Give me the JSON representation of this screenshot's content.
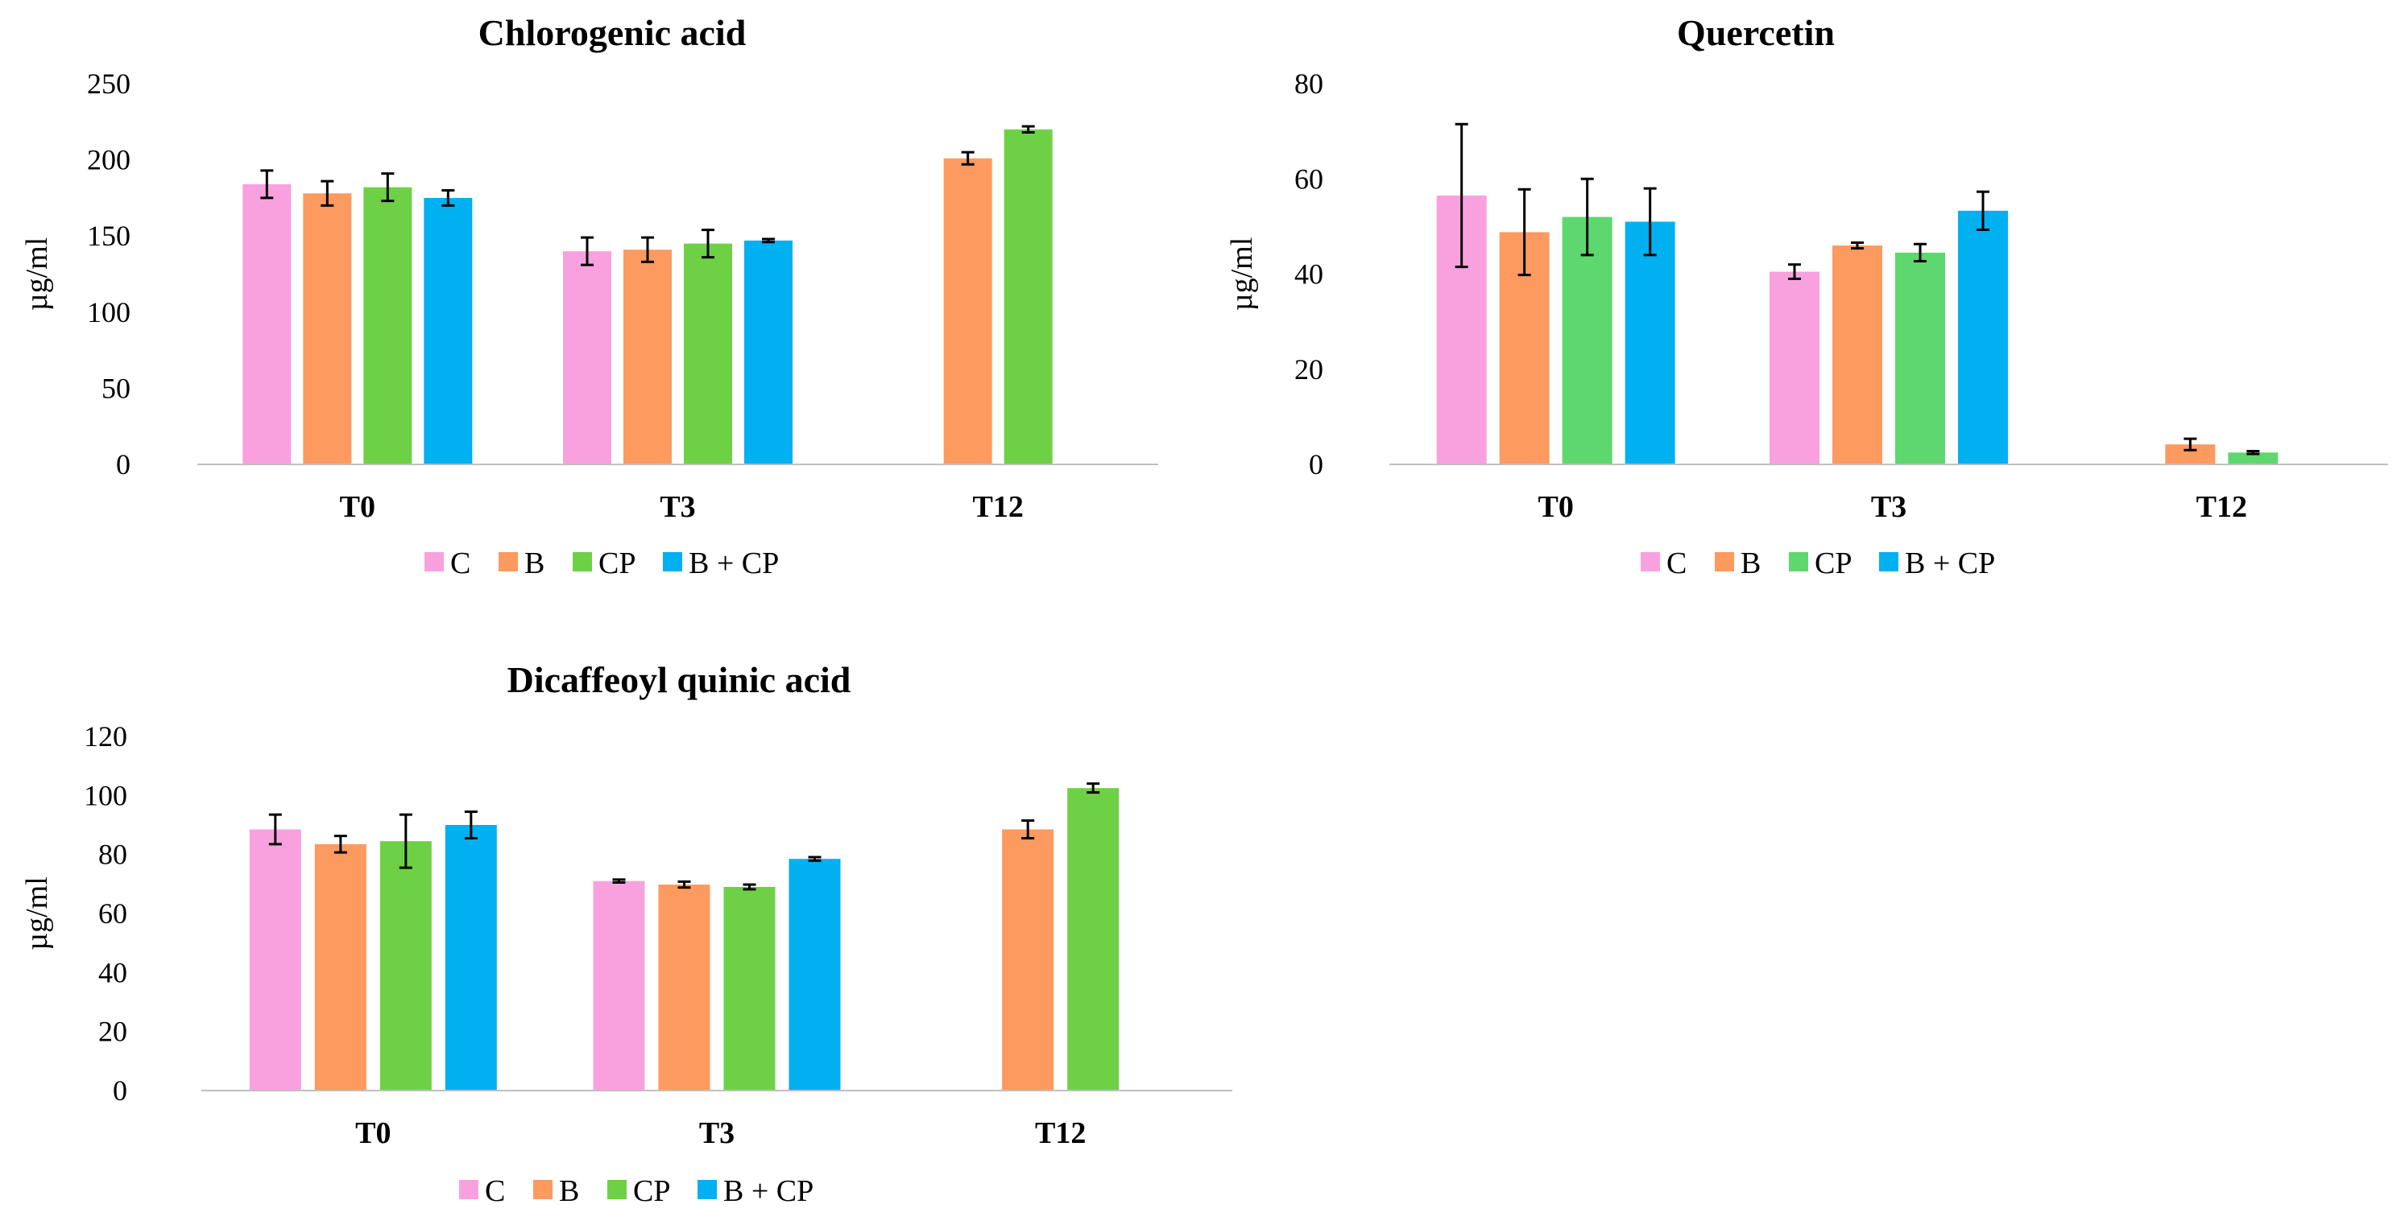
{
  "colors": {
    "C": "#f9a1df",
    "B": "#fd9a5f",
    "CP_first": "#6ed145",
    "CP_second": "#5ed86e",
    "B + CP": "#00b0f0",
    "axis": "#bfbfbf",
    "error": "#000000"
  },
  "chart_data": [
    {
      "type": "bar",
      "title": "Chlorogenic acid",
      "ylabel": "µg/ml",
      "xlabel": "",
      "ylim": [
        0,
        250
      ],
      "yticks": [
        0,
        50,
        100,
        150,
        200,
        250
      ],
      "categories": [
        "T0",
        "T3",
        "T12"
      ],
      "legend_position": "bottom",
      "series": [
        {
          "name": "C",
          "values": [
            184,
            140,
            null
          ],
          "errors": [
            9,
            9,
            null
          ]
        },
        {
          "name": "B",
          "values": [
            178,
            141,
            201
          ],
          "errors": [
            8,
            8,
            4
          ]
        },
        {
          "name": "CP",
          "values": [
            182,
            145,
            220
          ],
          "errors": [
            9,
            9,
            2
          ]
        },
        {
          "name": "B + CP",
          "values": [
            175,
            147,
            null
          ],
          "errors": [
            5,
            1,
            null
          ]
        }
      ]
    },
    {
      "type": "bar",
      "title": "Quercetin",
      "ylabel": "µg/ml",
      "xlabel": "",
      "ylim": [
        0,
        80
      ],
      "yticks": [
        0,
        20,
        40,
        60,
        80
      ],
      "categories": [
        "T0",
        "T3",
        "T12"
      ],
      "legend_position": "bottom",
      "series": [
        {
          "name": "C",
          "values": [
            56.5,
            40.5,
            null
          ],
          "errors": [
            15,
            1.5,
            null
          ]
        },
        {
          "name": "B",
          "values": [
            48.8,
            46,
            4.2
          ],
          "errors": [
            9,
            0.6,
            1.2
          ]
        },
        {
          "name": "CP",
          "values": [
            52,
            44.5,
            2.5
          ],
          "errors": [
            8,
            1.8,
            0.3
          ]
        },
        {
          "name": "B + CP",
          "values": [
            51,
            53.3,
            null
          ],
          "errors": [
            7,
            4,
            null
          ]
        }
      ]
    },
    {
      "type": "bar",
      "title": "Dicaffeoyl quinic acid",
      "ylabel": "µg/ml",
      "xlabel": "",
      "ylim": [
        0,
        120
      ],
      "yticks": [
        0,
        20,
        40,
        60,
        80,
        100,
        120
      ],
      "categories": [
        "T0",
        "T3",
        "T12"
      ],
      "legend_position": "bottom",
      "series": [
        {
          "name": "C",
          "values": [
            88.5,
            71,
            null
          ],
          "errors": [
            5,
            0.5,
            null
          ]
        },
        {
          "name": "B",
          "values": [
            83.5,
            69.8,
            88.5
          ],
          "errors": [
            2.8,
            1,
            3
          ]
        },
        {
          "name": "CP",
          "values": [
            84.5,
            69,
            102.5
          ],
          "errors": [
            9,
            0.8,
            1.5
          ]
        },
        {
          "name": "B + CP",
          "values": [
            90,
            78.5,
            null
          ],
          "errors": [
            4.5,
            0.6,
            null
          ]
        }
      ]
    }
  ]
}
